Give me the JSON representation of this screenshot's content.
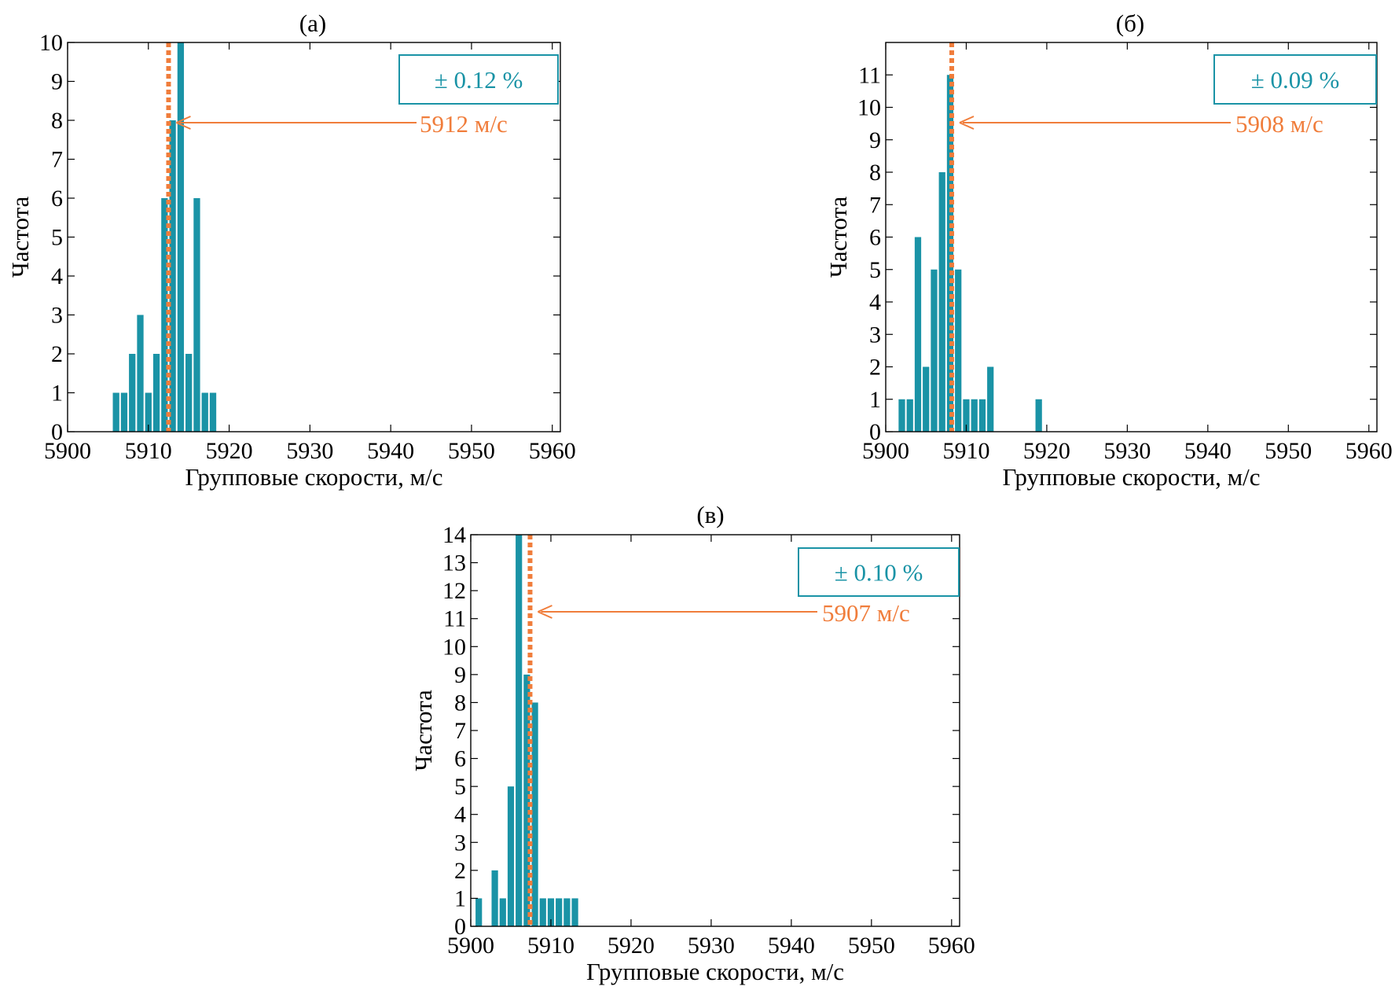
{
  "colors": {
    "bar": "#1a93a6",
    "mean_line": "#f07d3b",
    "box_border": "#1a93a6",
    "box_text": "#1a93a6",
    "arrow": "#f07d3b"
  },
  "chart_data": [
    {
      "type": "bar",
      "panel_label": "(а)",
      "xlabel": "Групповые скорости, м/с",
      "ylabel": "Частота",
      "xlim": [
        5900,
        5961
      ],
      "ylim": [
        0,
        10
      ],
      "xticks": [
        "5900",
        "5910",
        "5920",
        "5930",
        "5940",
        "5950",
        "5960"
      ],
      "yticks": [
        "0",
        "1",
        "2",
        "3",
        "4",
        "5",
        "6",
        "7",
        "8",
        "9",
        "10"
      ],
      "bins": [
        5906,
        5907,
        5908,
        5909,
        5910,
        5911,
        5912,
        5913,
        5914,
        5915,
        5916,
        5917,
        5918
      ],
      "values": [
        1,
        1,
        2,
        3,
        1,
        2,
        6,
        8,
        10,
        2,
        6,
        1,
        1
      ],
      "mean_value": 5912.5,
      "mean_label": "5912 м/с",
      "deviation_label": "± 0.12 %"
    },
    {
      "type": "bar",
      "panel_label": "(б)",
      "xlabel": "Групповые скорости, м/с",
      "ylabel": "Частота",
      "xlim": [
        5900,
        5961
      ],
      "ylim": [
        0,
        12
      ],
      "xticks": [
        "5900",
        "5910",
        "5920",
        "5930",
        "5940",
        "5950",
        "5960"
      ],
      "yticks": [
        "0",
        "1",
        "2",
        "3",
        "4",
        "5",
        "6",
        "7",
        "8",
        "9",
        "10",
        "11"
      ],
      "bins": [
        5902,
        5903,
        5904,
        5905,
        5906,
        5907,
        5908,
        5909,
        5910,
        5911,
        5912,
        5913,
        5919
      ],
      "values": [
        1,
        1,
        6,
        2,
        5,
        8,
        11,
        5,
        1,
        1,
        1,
        2,
        1
      ],
      "mean_value": 5908.2,
      "mean_label": "5908 м/с",
      "deviation_label": "± 0.09 %"
    },
    {
      "type": "bar",
      "panel_label": "(в)",
      "xlabel": "Групповые скорости, м/с",
      "ylabel": "Частота",
      "xlim": [
        5900,
        5961
      ],
      "ylim": [
        0,
        14
      ],
      "xticks": [
        "5900",
        "5910",
        "5920",
        "5930",
        "5940",
        "5950",
        "5960"
      ],
      "yticks": [
        "0",
        "1",
        "2",
        "3",
        "4",
        "5",
        "6",
        "7",
        "8",
        "9",
        "10",
        "11",
        "12",
        "13",
        "14"
      ],
      "bins": [
        5901,
        5903,
        5904,
        5905,
        5906,
        5907,
        5908,
        5909,
        5910,
        5911,
        5912,
        5913
      ],
      "values": [
        1,
        2,
        1,
        5,
        14,
        9,
        8,
        1,
        1,
        1,
        1,
        1
      ],
      "mean_value": 5907.4,
      "mean_label": "5907 м/с",
      "deviation_label": "± 0.10 %"
    }
  ]
}
